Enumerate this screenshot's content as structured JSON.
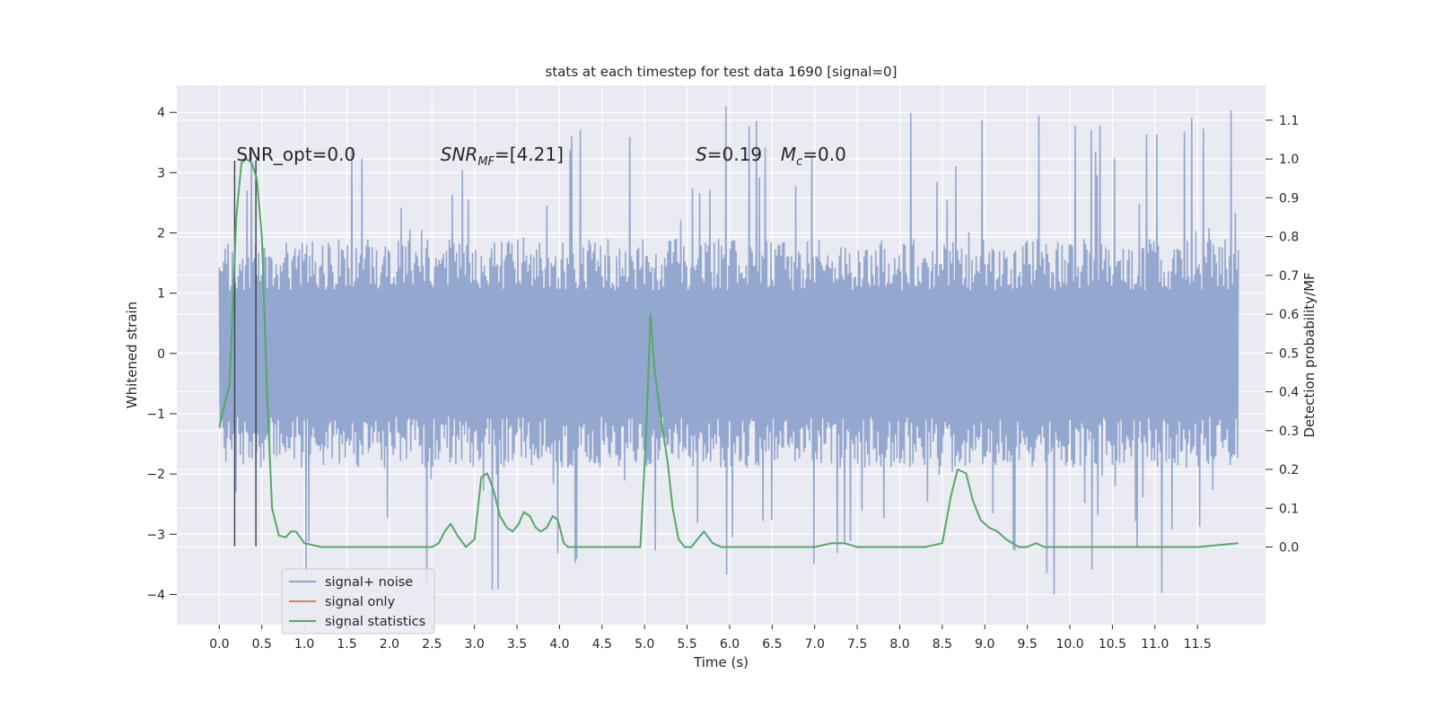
{
  "chart_data": {
    "type": "line",
    "title": "stats at each timestep for test data 1690 [signal=0]",
    "xlabel": "Time (s)",
    "ylabel_left": "Whitened strain",
    "ylabel_right": "Detection probability/MF",
    "xlim": [
      -0.5,
      12.3
    ],
    "ylim_left": [
      -4.5,
      4.45
    ],
    "ylim_right": [
      -0.2,
      1.19
    ],
    "x_ticks": [
      0.0,
      0.5,
      1.0,
      1.5,
      2.0,
      2.5,
      3.0,
      3.5,
      4.0,
      4.5,
      5.0,
      5.5,
      6.0,
      6.5,
      7.0,
      7.5,
      8.0,
      8.5,
      9.0,
      9.5,
      10.0,
      10.5,
      11.0,
      11.5
    ],
    "x_tick_labels": [
      "0.0",
      "0.5",
      "1.0",
      "1.5",
      "2.0",
      "2.5",
      "3.0",
      "3.5",
      "4.0",
      "4.5",
      "5.0",
      "5.5",
      "6.0",
      "6.5",
      "7.0",
      "7.5",
      "8.0",
      "8.5",
      "9.0",
      "9.5",
      "10.0",
      "10.5",
      "11.0",
      "11.5"
    ],
    "y_ticks_left": [
      4,
      3,
      2,
      1,
      0,
      -1,
      -2,
      -3,
      -4
    ],
    "y_tick_labels_left": [
      "4",
      "3",
      "2",
      "1",
      "0",
      "−1",
      "−2",
      "−3",
      "−4"
    ],
    "y_ticks_right": [
      1.1,
      1.0,
      0.9,
      0.8,
      0.7,
      0.6,
      0.5,
      0.4,
      0.3,
      0.2,
      0.1,
      0.0
    ],
    "y_tick_labels_right": [
      "1.1",
      "1.0",
      "0.9",
      "0.8",
      "0.7",
      "0.6",
      "0.5",
      "0.4",
      "0.3",
      "0.2",
      "0.1",
      "0.0"
    ],
    "grid": true,
    "legend_placement": "lower-left",
    "annotations": [
      {
        "text": "SNR_opt=0.0",
        "x": 0.2,
        "y": 3.2
      },
      {
        "text": "SNR_MF=[4.21]",
        "x": 2.6,
        "y": 3.2
      },
      {
        "text": "S=0.19",
        "x": 5.6,
        "y": 3.2
      },
      {
        "text": "M_c=0.0",
        "x": 6.6,
        "y": 3.2
      }
    ],
    "vertical_markers": [
      {
        "x": 0.18,
        "y_from": -3.2,
        "y_to": 3.2
      },
      {
        "x": 0.43,
        "y_from": -3.2,
        "y_to": 3.2
      }
    ],
    "noise_band": {
      "x_start": 0.0,
      "x_end": 11.98,
      "typical_amplitude": 1.9,
      "peak_amplitude": 4.1
    },
    "series": [
      {
        "name": "signal+ noise",
        "color": "#8fa3cc",
        "axis": "left"
      },
      {
        "name": "signal only",
        "color": "#dd8452",
        "axis": "left"
      },
      {
        "name": "signal statistics",
        "color": "#55a868",
        "axis": "right",
        "x": [
          0.0,
          0.12,
          0.2,
          0.26,
          0.32,
          0.38,
          0.44,
          0.5,
          0.56,
          0.62,
          0.7,
          0.78,
          0.84,
          0.9,
          1.0,
          1.2,
          1.5,
          1.7,
          2.0,
          2.3,
          2.5,
          2.58,
          2.65,
          2.72,
          2.8,
          2.9,
          3.0,
          3.08,
          3.15,
          3.22,
          3.3,
          3.38,
          3.45,
          3.52,
          3.58,
          3.65,
          3.72,
          3.78,
          3.85,
          3.92,
          3.98,
          4.05,
          4.1,
          4.2,
          4.5,
          4.8,
          4.95,
          5.02,
          5.07,
          5.12,
          5.2,
          5.27,
          5.33,
          5.4,
          5.47,
          5.55,
          5.62,
          5.7,
          5.8,
          5.9,
          6.0,
          6.5,
          7.0,
          7.2,
          7.35,
          7.5,
          7.8,
          8.0,
          8.3,
          8.5,
          8.6,
          8.68,
          8.78,
          8.86,
          8.95,
          9.05,
          9.15,
          9.25,
          9.4,
          9.5,
          9.6,
          9.7,
          9.8,
          10.0,
          10.5,
          11.0,
          11.5,
          11.98
        ],
        "y": [
          0.31,
          0.42,
          0.85,
          0.99,
          1.0,
          0.99,
          0.95,
          0.8,
          0.4,
          0.1,
          0.03,
          0.025,
          0.04,
          0.04,
          0.01,
          0.0,
          0.0,
          0.0,
          0.0,
          0.0,
          0.0,
          0.01,
          0.04,
          0.06,
          0.03,
          0.0,
          0.02,
          0.18,
          0.19,
          0.15,
          0.08,
          0.05,
          0.04,
          0.06,
          0.09,
          0.08,
          0.05,
          0.04,
          0.05,
          0.08,
          0.07,
          0.01,
          0.0,
          0.0,
          0.0,
          0.0,
          0.0,
          0.3,
          0.6,
          0.45,
          0.32,
          0.22,
          0.1,
          0.02,
          0.0,
          0.0,
          0.02,
          0.04,
          0.01,
          0.0,
          0.0,
          0.0,
          0.0,
          0.01,
          0.01,
          0.0,
          0.0,
          0.0,
          0.0,
          0.01,
          0.13,
          0.2,
          0.19,
          0.12,
          0.07,
          0.05,
          0.04,
          0.02,
          0.0,
          0.0,
          0.01,
          0.0,
          0.0,
          0.0,
          0.0,
          0.0,
          0.0,
          0.01
        ]
      }
    ]
  }
}
